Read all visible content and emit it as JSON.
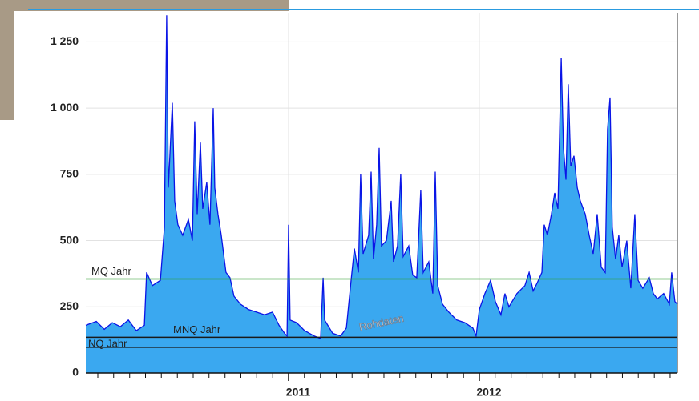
{
  "chart_data": {
    "type": "area",
    "annotation": "Rohdaten",
    "x": [
      2009.937,
      2009.992,
      2010.034,
      2010.076,
      2010.118,
      2010.16,
      2010.202,
      2010.244,
      2010.256,
      2010.286,
      2010.328,
      2010.349,
      2010.361,
      2010.37,
      2010.391,
      2010.403,
      2010.42,
      2010.445,
      2010.475,
      2010.496,
      2010.508,
      2010.521,
      2010.538,
      2010.55,
      2010.571,
      2010.588,
      2010.605,
      2010.613,
      2010.63,
      2010.647,
      2010.672,
      2010.693,
      2010.714,
      2010.748,
      2010.79,
      2010.832,
      2010.874,
      2010.916,
      2010.95,
      2010.979,
      2010.992,
      2011.0,
      2011.008,
      2011.042,
      2011.084,
      2011.134,
      2011.168,
      2011.181,
      2011.189,
      2011.231,
      2011.273,
      2011.303,
      2011.328,
      2011.345,
      2011.366,
      2011.378,
      2011.391,
      2011.42,
      2011.433,
      2011.445,
      2011.462,
      2011.475,
      2011.487,
      2011.513,
      2011.538,
      2011.55,
      2011.571,
      2011.588,
      2011.601,
      2011.63,
      2011.651,
      2011.672,
      2011.693,
      2011.706,
      2011.735,
      2011.756,
      2011.769,
      2011.782,
      2011.807,
      2011.84,
      2011.882,
      2011.924,
      2011.966,
      2011.983,
      2012.0,
      2012.029,
      2012.059,
      2012.084,
      2012.113,
      2012.134,
      2012.155,
      2012.197,
      2012.239,
      2012.261,
      2012.282,
      2012.303,
      2012.328,
      2012.34,
      2012.357,
      2012.378,
      2012.395,
      2012.412,
      2012.429,
      2012.441,
      2012.454,
      2012.466,
      2012.479,
      2012.496,
      2012.513,
      2012.529,
      2012.555,
      2012.576,
      2012.597,
      2012.618,
      2012.639,
      2012.66,
      2012.672,
      2012.685,
      2012.697,
      2012.714,
      2012.731,
      2012.748,
      2012.773,
      2012.794,
      2012.815,
      2012.832,
      2012.857,
      2012.891,
      2012.912,
      2012.933,
      2012.966,
      2012.996,
      2013.008,
      2013.025,
      2013.038
    ],
    "series": [
      {
        "color": "#3aa8f0",
        "line_color": "#0a14e6",
        "values": [
          180,
          195,
          165,
          190,
          175,
          200,
          160,
          180,
          380,
          330,
          350,
          550,
          1350,
          700,
          1020,
          650,
          560,
          520,
          580,
          500,
          950,
          600,
          870,
          620,
          720,
          560,
          1000,
          700,
          600,
          520,
          380,
          360,
          290,
          260,
          240,
          230,
          220,
          230,
          180,
          150,
          140,
          560,
          200,
          190,
          160,
          140,
          130,
          360,
          200,
          150,
          140,
          170,
          350,
          470,
          380,
          750,
          450,
          520,
          760,
          430,
          560,
          850,
          480,
          500,
          650,
          420,
          480,
          750,
          440,
          480,
          370,
          360,
          690,
          380,
          420,
          300,
          760,
          330,
          260,
          230,
          200,
          190,
          170,
          140,
          240,
          300,
          350,
          270,
          220,
          300,
          250,
          300,
          330,
          380,
          310,
          340,
          380,
          560,
          520,
          600,
          680,
          620,
          1190,
          850,
          730,
          1090,
          780,
          820,
          700,
          650,
          600,
          520,
          450,
          600,
          400,
          380,
          920,
          1040,
          550,
          430,
          520,
          400,
          500,
          320,
          600,
          350,
          320,
          360,
          300,
          280,
          300,
          260,
          380,
          270,
          260
        ]
      }
    ],
    "reference_lines": [
      {
        "label": "MQ Jahr",
        "value": 355,
        "color": "#2e9e2e"
      },
      {
        "label": "MNQ Jahr",
        "value": 135,
        "color": "#1a1a1a"
      },
      {
        "label": "NQ Jahr",
        "value": 97,
        "color": "#1a1a1a"
      }
    ],
    "xlim": [
      2009.937,
      2013.038
    ],
    "xticks": [
      2011,
      2012
    ],
    "xminorticks": [
      2010.0,
      2010.083,
      2010.167,
      2010.25,
      2010.333,
      2010.417,
      2010.5,
      2010.583,
      2010.667,
      2010.75,
      2010.833,
      2010.917,
      2011.083,
      2011.167,
      2011.25,
      2011.333,
      2011.417,
      2011.5,
      2011.583,
      2011.667,
      2011.75,
      2011.833,
      2011.917,
      2012.083,
      2012.167,
      2012.25,
      2012.333,
      2012.417,
      2012.5,
      2012.583,
      2012.667,
      2012.75,
      2012.833,
      2012.917,
      2013.0
    ],
    "ylim": [
      0,
      1360
    ],
    "yticks": [
      0,
      250,
      500,
      750,
      {
        "value": 1000,
        "label": "1 000"
      },
      {
        "value": 1250,
        "label": "1 250"
      }
    ],
    "grid": true
  }
}
